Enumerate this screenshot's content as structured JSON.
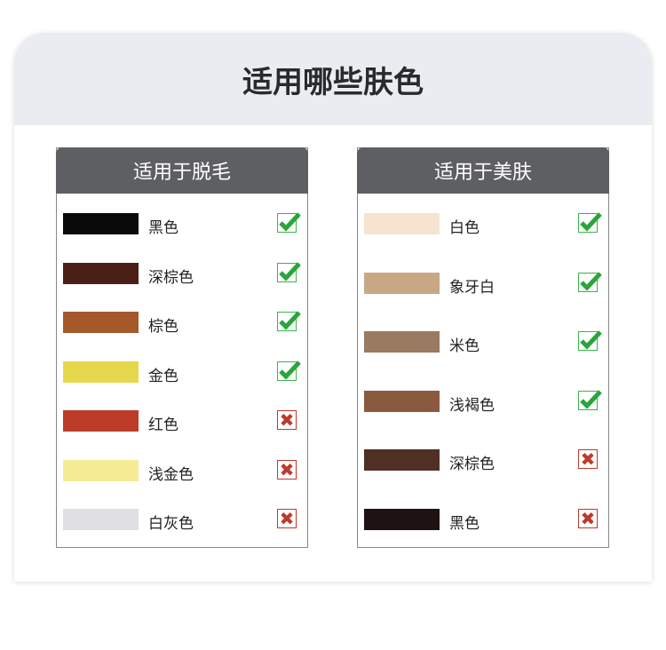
{
  "title": "适用哪些肤色",
  "panels": [
    {
      "title": "适用于脱毛",
      "items": [
        {
          "label": "黑色",
          "color": "#0a0a0a",
          "ok": true
        },
        {
          "label": "深棕色",
          "color": "#4a2016",
          "ok": true
        },
        {
          "label": "棕色",
          "color": "#a5592a",
          "ok": true
        },
        {
          "label": "金色",
          "color": "#e6d84c",
          "ok": true
        },
        {
          "label": "红色",
          "color": "#bc3c28",
          "ok": false
        },
        {
          "label": "浅金色",
          "color": "#f6ec96",
          "ok": false
        },
        {
          "label": "白灰色",
          "color": "#e0e0e3",
          "ok": false
        }
      ]
    },
    {
      "title": "适用于美肤",
      "items": [
        {
          "label": "白色",
          "color": "#f6e4d0",
          "ok": true
        },
        {
          "label": "象牙白",
          "color": "#c8a884",
          "ok": true
        },
        {
          "label": "米色",
          "color": "#9a7a60",
          "ok": true
        },
        {
          "label": "浅褐色",
          "color": "#8a5a40",
          "ok": true
        },
        {
          "label": "深棕色",
          "color": "#503024",
          "ok": false
        },
        {
          "label": "黑色",
          "color": "#1e1212",
          "ok": false
        }
      ]
    }
  ],
  "icons": {
    "check": "check-icon",
    "cross": "cross-icon"
  }
}
